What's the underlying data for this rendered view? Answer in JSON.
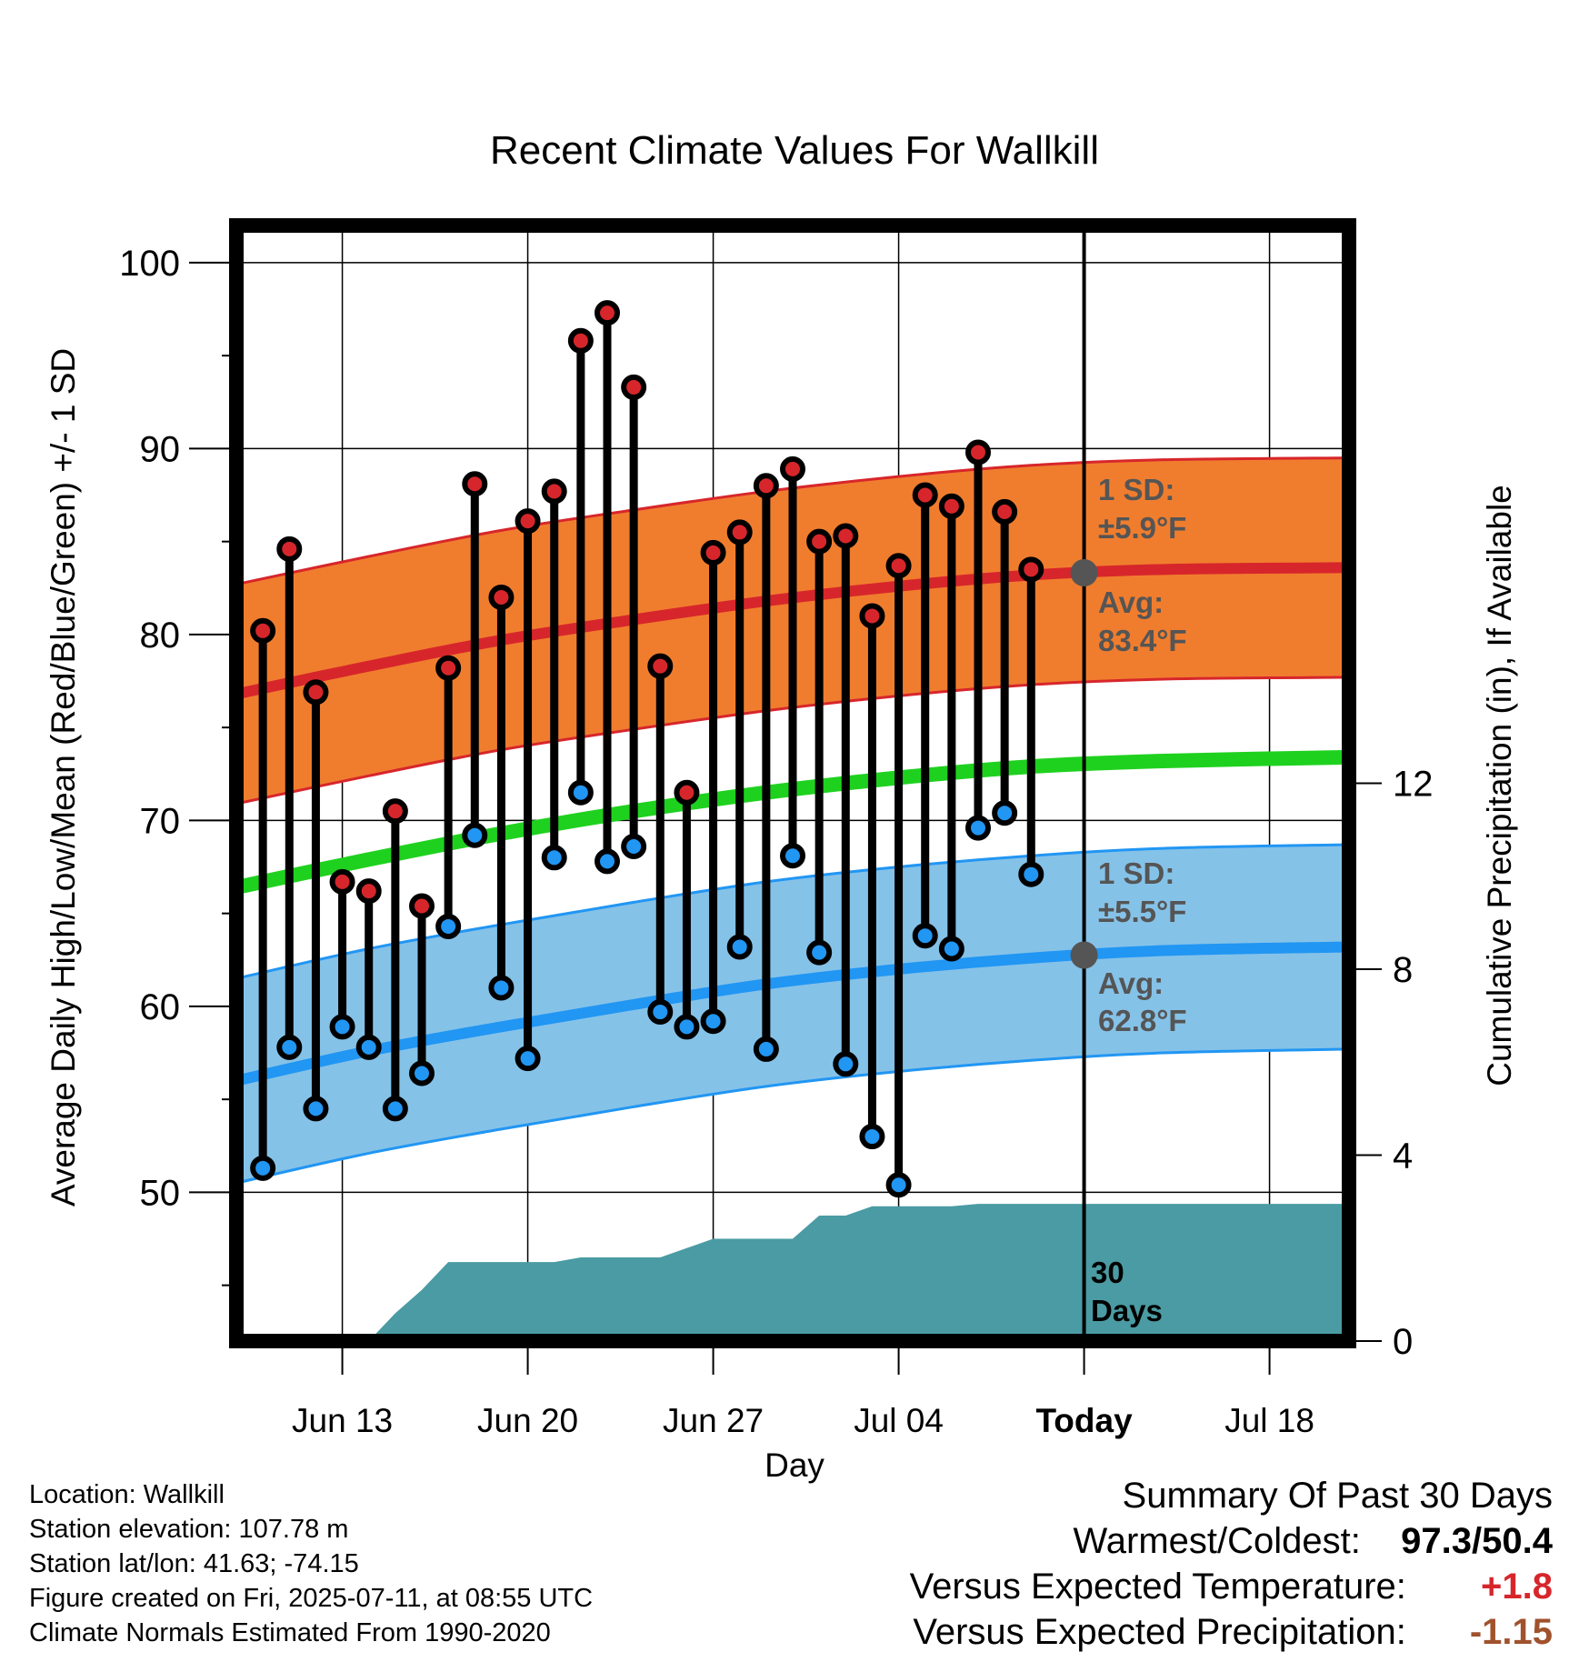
{
  "chart_data": {
    "type": "line",
    "title": "Recent Climate Values For Wallkill",
    "xlabel": "Day",
    "ylabel": "Average Daily High/Low/Mean (Red/Blue/Green) +/- 1 SD",
    "y2label": "Cumulative Precipitation (in), If Available",
    "ylim": [
      42,
      102
    ],
    "y2lim": [
      0,
      24
    ],
    "xlim": [
      "2025-06-09",
      "2025-07-21"
    ],
    "x_ticks": [
      {
        "date": "2025-06-13",
        "label": "Jun 13"
      },
      {
        "date": "2025-06-20",
        "label": "Jun 20"
      },
      {
        "date": "2025-06-27",
        "label": "Jun 27"
      },
      {
        "date": "2025-07-04",
        "label": "Jul 04"
      },
      {
        "date": "2025-07-11",
        "label": "Today"
      },
      {
        "date": "2025-07-18",
        "label": "Jul 18"
      }
    ],
    "y_ticks": [
      50,
      60,
      70,
      80,
      90,
      100
    ],
    "y2_ticks": [
      0,
      4,
      8,
      12
    ],
    "grid": true,
    "today": "2025-07-11",
    "normals": {
      "dates": [
        "2025-06-09",
        "2025-06-14",
        "2025-06-19",
        "2025-06-24",
        "2025-06-29",
        "2025-07-04",
        "2025-07-09",
        "2025-07-14",
        "2025-07-21"
      ],
      "high_avg": [
        76.8,
        78.3,
        79.7,
        80.8,
        81.8,
        82.6,
        83.2,
        83.5,
        83.6
      ],
      "low_avg": [
        56.0,
        57.6,
        58.9,
        60.1,
        61.2,
        62.0,
        62.6,
        63.0,
        63.2
      ],
      "mean_avg": [
        66.4,
        67.9,
        69.3,
        70.5,
        71.5,
        72.3,
        72.9,
        73.2,
        73.4
      ],
      "high_sd": 5.9,
      "low_sd": 5.5
    },
    "series": [
      {
        "name": "High",
        "dates": [
          "2025-06-10",
          "2025-06-11",
          "2025-06-12",
          "2025-06-13",
          "2025-06-14",
          "2025-06-15",
          "2025-06-16",
          "2025-06-17",
          "2025-06-18",
          "2025-06-19",
          "2025-06-20",
          "2025-06-21",
          "2025-06-22",
          "2025-06-23",
          "2025-06-24",
          "2025-06-25",
          "2025-06-26",
          "2025-06-27",
          "2025-06-28",
          "2025-06-29",
          "2025-06-30",
          "2025-07-01",
          "2025-07-02",
          "2025-07-03",
          "2025-07-04",
          "2025-07-05",
          "2025-07-06",
          "2025-07-07",
          "2025-07-08",
          "2025-07-09",
          "2025-07-10"
        ],
        "values": [
          80.2,
          84.6,
          76.9,
          66.7,
          66.2,
          70.5,
          65.4,
          78.2,
          88.1,
          82.0,
          86.1,
          87.7,
          95.8,
          97.3,
          93.3,
          78.3,
          71.5,
          84.4,
          85.5,
          88.0,
          88.9,
          85.0,
          85.3,
          81.0,
          83.7,
          87.5,
          86.9,
          89.8,
          86.6,
          83.5,
          null
        ]
      },
      {
        "name": "Low",
        "dates": [
          "2025-06-10",
          "2025-06-11",
          "2025-06-12",
          "2025-06-13",
          "2025-06-14",
          "2025-06-15",
          "2025-06-16",
          "2025-06-17",
          "2025-06-18",
          "2025-06-19",
          "2025-06-20",
          "2025-06-21",
          "2025-06-22",
          "2025-06-23",
          "2025-06-24",
          "2025-06-25",
          "2025-06-26",
          "2025-06-27",
          "2025-06-28",
          "2025-06-29",
          "2025-06-30",
          "2025-07-01",
          "2025-07-02",
          "2025-07-03",
          "2025-07-04",
          "2025-07-05",
          "2025-07-06",
          "2025-07-07",
          "2025-07-08",
          "2025-07-09",
          "2025-07-10"
        ],
        "values": [
          51.3,
          57.8,
          54.5,
          58.9,
          57.8,
          54.5,
          56.4,
          64.3,
          69.2,
          61.0,
          57.2,
          68.0,
          71.5,
          67.8,
          68.6,
          59.7,
          58.9,
          59.2,
          63.2,
          57.7,
          68.1,
          62.9,
          56.9,
          53.0,
          50.4,
          63.8,
          63.1,
          69.6,
          70.4,
          67.1,
          null
        ]
      }
    ],
    "precip_cumulative": {
      "dates": [
        "2025-06-12",
        "2025-06-14",
        "2025-06-15",
        "2025-06-16",
        "2025-06-17",
        "2025-06-18",
        "2025-06-19",
        "2025-06-20",
        "2025-06-21",
        "2025-06-22",
        "2025-06-23",
        "2025-06-24",
        "2025-06-25",
        "2025-06-26",
        "2025-06-27",
        "2025-06-28",
        "2025-06-29",
        "2025-06-30",
        "2025-07-01",
        "2025-07-02",
        "2025-07-03",
        "2025-07-04",
        "2025-07-05",
        "2025-07-06",
        "2025-07-07",
        "2025-07-21"
      ],
      "values": [
        0,
        0,
        0.6,
        1.1,
        1.7,
        1.7,
        1.7,
        1.7,
        1.7,
        1.8,
        1.8,
        1.8,
        1.8,
        2.0,
        2.2,
        2.2,
        2.2,
        2.2,
        2.7,
        2.7,
        2.9,
        2.9,
        2.9,
        2.9,
        2.95,
        2.95
      ]
    },
    "annotations": {
      "high_sd_label": "1 SD:",
      "high_sd_value": "±5.9°F",
      "high_avg_label": "Avg:",
      "high_avg_value": "83.4°F",
      "low_sd_label": "1 SD:",
      "low_sd_value": "±5.5°F",
      "low_avg_label": "Avg:",
      "low_avg_value": "62.8°F",
      "days_value": "30",
      "days_label": "Days"
    },
    "colors": {
      "high_band": "#f07d2e",
      "high_line": "#d7262b",
      "low_band": "#85c2e8",
      "low_line": "#2196f3",
      "mean_line": "#1fd11f",
      "precip": "#4a9ba3",
      "annotation": "#555555"
    }
  },
  "info": {
    "location": "Location: Wallkill",
    "elevation": "Station elevation: 107.78 m",
    "latlon": "Station lat/lon: 41.63; -74.15",
    "created": "Figure created on Fri, 2025-07-11, at 08:55 UTC",
    "normals": "Climate Normals Estimated From 1990-2020"
  },
  "summary": {
    "title": "Summary Of Past 30 Days",
    "warmest_label": "Warmest/Coldest:",
    "warmest_value": "97.3/50.4",
    "temp_label": "Versus Expected Temperature:",
    "temp_value": "+1.8",
    "temp_color": "#d7262b",
    "precip_label": "Versus Expected Precipitation:",
    "precip_value": "-1.15",
    "precip_color": "#a0522d"
  }
}
